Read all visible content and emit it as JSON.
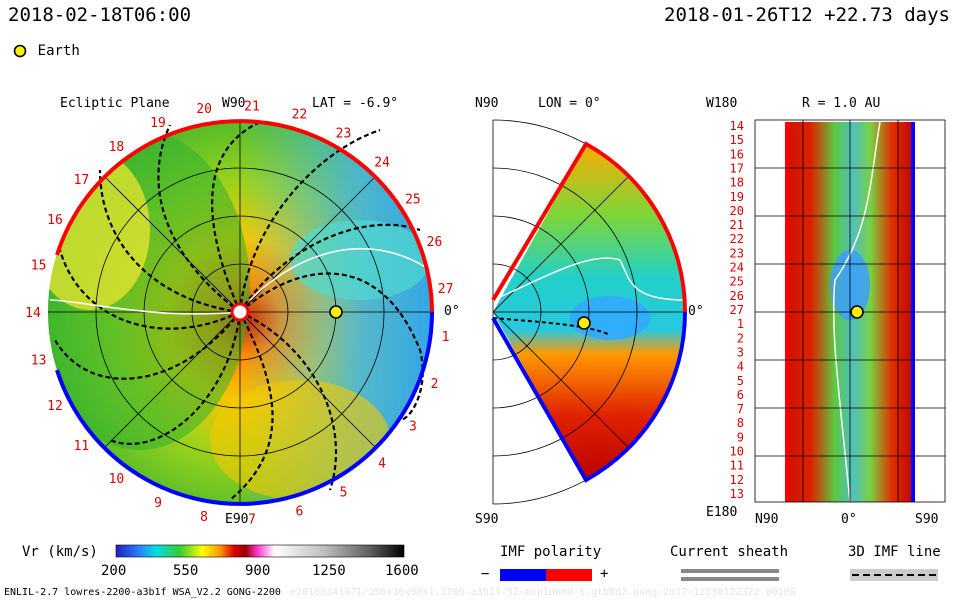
{
  "header": {
    "timestamp": "2018-02-18T06:00",
    "run_info": "2018-01-26T12 +22.73 days"
  },
  "legend_earth": {
    "label": "Earth"
  },
  "ecliptic": {
    "title": "Ecliptic Plane",
    "lat_label": "LAT = -6.9°",
    "top_label": "W90",
    "bottom_label": "E90",
    "right_label": "0°",
    "ring_numbers": [
      "14",
      "15",
      "16",
      "17",
      "18",
      "19",
      "20",
      "21",
      "22",
      "23",
      "24",
      "25",
      "26",
      "27",
      "1",
      "2",
      "3",
      "4",
      "5",
      "6",
      "7",
      "8",
      "9",
      "10",
      "11",
      "12",
      "13"
    ]
  },
  "meridional": {
    "lon_label": "LON = 0°",
    "top_label": "N90",
    "bottom_label": "S90",
    "right_label": "0°"
  },
  "radial": {
    "title": "R = 1.0 AU",
    "top_label": "W180",
    "bottom_label": "E180",
    "x_labels": [
      "N90",
      "0°",
      "S90"
    ],
    "y_labels": [
      "14",
      "15",
      "16",
      "17",
      "18",
      "19",
      "20",
      "21",
      "22",
      "23",
      "24",
      "25",
      "26",
      "27",
      "1",
      "2",
      "3",
      "4",
      "5",
      "6",
      "7",
      "8",
      "9",
      "10",
      "11",
      "12",
      "13"
    ]
  },
  "colorbar": {
    "label": "Vr (km/s)",
    "ticks": [
      "200",
      "550",
      "900",
      "1250",
      "1600"
    ],
    "colors": [
      "#2020c0",
      "#2a7fff",
      "#00e0e0",
      "#33cc33",
      "#ffff00",
      "#ff9900",
      "#e00000",
      "#990000",
      "#ff33cc",
      "#ffffff",
      "#c0c0c0",
      "#606060",
      "#000000"
    ]
  },
  "imf_legend": {
    "title": "IMF polarity",
    "minus": "−",
    "plus": "+",
    "neg_color": "#0000ff",
    "pos_color": "#ff0000"
  },
  "sheath_legend": {
    "title": "Current sheath"
  },
  "imf3d_legend": {
    "title": "3D IMF line"
  },
  "footer": {
    "model_info": "ENLIL-2.7 lowres-2200-a3b1f WSA_V2.2 GONG-2200",
    "faded_info": "e20180341071/256x30x90x1.2200-a3b1f-52-mcp1unmd-1.gtb5d2.gong-2017-12530122322.00100"
  }
}
